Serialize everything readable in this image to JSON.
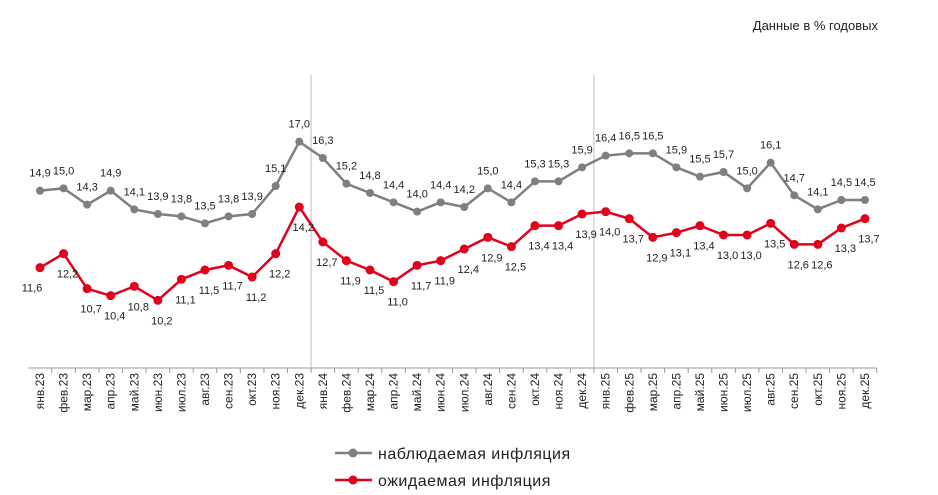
{
  "chart_data": {
    "type": "line",
    "title": "",
    "annotation": "Данные в % годовых",
    "categories": [
      "янв.23",
      "фев.23",
      "мар.23",
      "апр.23",
      "май.23",
      "июн.23",
      "июл.23",
      "авг.23",
      "сен.23",
      "окт.23",
      "ноя.23",
      "дек.23",
      "янв.24",
      "фев.24",
      "мар.24",
      "апр.24",
      "май.24",
      "июн.24",
      "июл.24",
      "авг.24",
      "сен.24",
      "окт.24",
      "ноя.24",
      "дек.24",
      "янв.25",
      "фев.25",
      "мар.25",
      "апр.25",
      "май.25",
      "июн.25",
      "июл.25",
      "авг.25",
      "сен.25",
      "окт.25",
      "ноя.25",
      "дек.25"
    ],
    "series": [
      {
        "name": "наблюдаемая инфляция",
        "color": "#7f7f7f",
        "values": [
          14.9,
          15.0,
          14.3,
          14.9,
          14.1,
          13.9,
          13.8,
          13.5,
          13.8,
          13.9,
          15.1,
          17.0,
          16.3,
          15.2,
          14.8,
          14.4,
          14.0,
          14.4,
          14.2,
          15.0,
          14.4,
          15.3,
          15.3,
          15.9,
          16.4,
          16.5,
          16.5,
          15.9,
          15.5,
          15.7,
          15.0,
          16.1,
          14.7,
          14.1,
          14.5,
          14.5
        ]
      },
      {
        "name": "ожидаемая инфляция",
        "color": "#e3001b",
        "values": [
          11.6,
          12.2,
          10.7,
          10.4,
          10.8,
          10.2,
          11.1,
          11.5,
          11.7,
          11.2,
          12.2,
          14.2,
          12.7,
          11.9,
          11.5,
          11.0,
          11.7,
          11.9,
          12.4,
          12.9,
          12.5,
          13.4,
          13.4,
          13.9,
          14.0,
          13.7,
          12.9,
          13.1,
          13.4,
          13.0,
          13.0,
          13.5,
          12.6,
          12.6,
          13.3,
          13.7
        ]
      }
    ],
    "ylim": [
      7.3,
      19
    ],
    "y_axis_visible": false,
    "grid": false,
    "vertical_markers_after": [
      "дек.23",
      "дек.24"
    ],
    "legend_placement": "bottom-center",
    "decimal_separator": ","
  }
}
